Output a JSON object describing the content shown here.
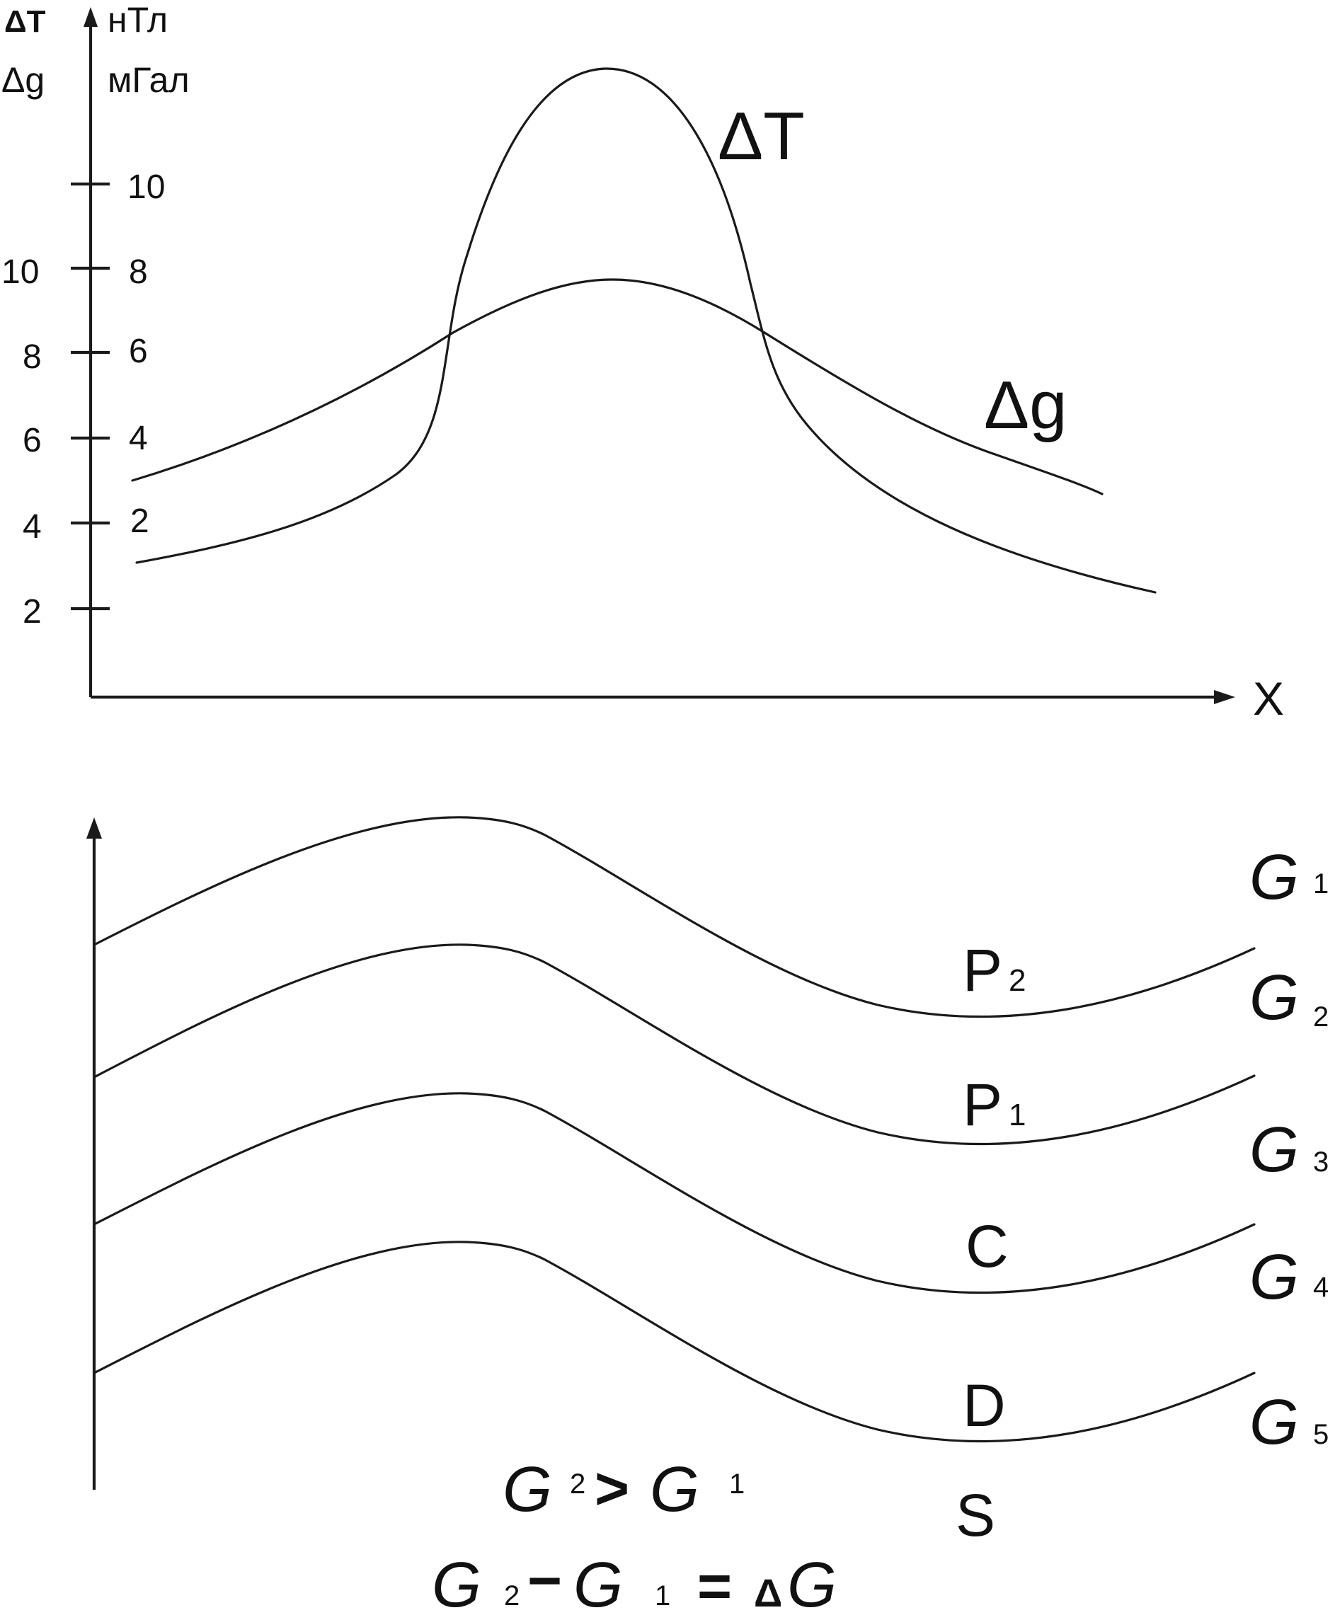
{
  "top_chart": {
    "left_unit_symbol": "ΔT",
    "left_unit_symbol2": "Δg",
    "right_unit_1": "нТл",
    "right_unit_2": "мГал",
    "outer_ticks": [
      "10",
      "8",
      "6",
      "4",
      "2"
    ],
    "inner_ticks": [
      "10",
      "8",
      "6",
      "4",
      "2"
    ],
    "x_label": "X",
    "curve_dt_label": "ΔT",
    "curve_dg_label": "Δg"
  },
  "bottom_section": {
    "layers": [
      {
        "sigma": "G",
        "index": "1"
      },
      {
        "sigma": "G",
        "index": "2",
        "label": "P",
        "label_sub": "2"
      },
      {
        "sigma": "G",
        "index": "3",
        "label": "P",
        "label_sub": "1"
      },
      {
        "sigma": "G",
        "index": "4",
        "label": "C"
      },
      {
        "sigma": "G",
        "index": "5",
        "label": "D"
      }
    ],
    "bottom_label": "S",
    "formula1": {
      "a": "G",
      "a_sub": "2",
      "op": ">",
      "b": "G",
      "b_sub": "1"
    },
    "formula2": {
      "a": "G",
      "a_sub": "2",
      "op": "−",
      "b": "G",
      "b_sub": "1",
      "eq": "=",
      "delta": "Δ",
      "c": "G"
    }
  }
}
